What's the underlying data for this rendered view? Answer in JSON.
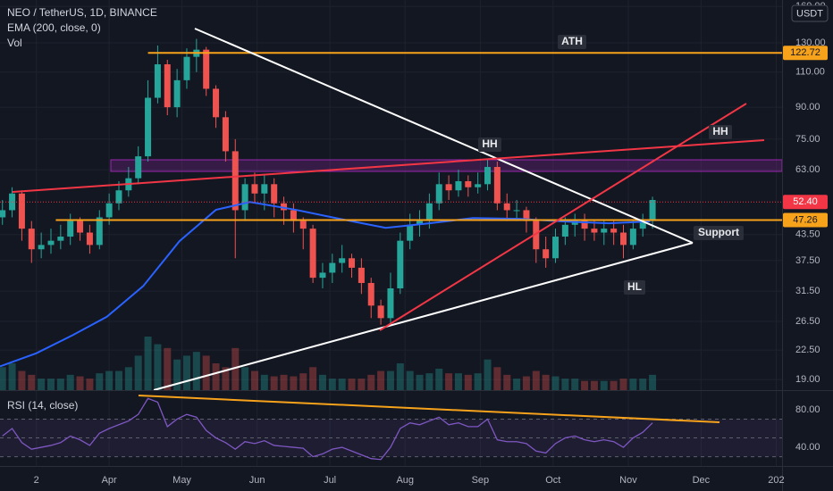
{
  "chart_data": [
    {
      "type": "candlestick",
      "title": "NEO / TetherUS, 1D, BINANCE",
      "unit": "USDT",
      "log_scale": true,
      "grid": true,
      "up_color": "#26a69a",
      "down_color": "#ef5350",
      "xlim": [
        -15,
        307.4
      ],
      "xticks": [
        {
          "value": 0,
          "label": "2"
        },
        {
          "value": 30,
          "label": "Apr"
        },
        {
          "value": 60,
          "label": "May"
        },
        {
          "value": 91,
          "label": "Jun"
        },
        {
          "value": 121,
          "label": "Jul"
        },
        {
          "value": 152,
          "label": "Aug"
        },
        {
          "value": 183,
          "label": "Sep"
        },
        {
          "value": 213,
          "label": "Oct"
        },
        {
          "value": 244,
          "label": "Nov"
        },
        {
          "value": 274,
          "label": "Dec"
        },
        {
          "value": 305,
          "label": "202"
        }
      ],
      "ylim": [
        17.9,
        166
      ],
      "yticks": [
        {
          "value": 160,
          "label": "160.00"
        },
        {
          "value": 130,
          "label": "130.00"
        },
        {
          "value": 110,
          "label": "110.00"
        },
        {
          "value": 90,
          "label": "90.00"
        },
        {
          "value": 75,
          "label": "75.00"
        },
        {
          "value": 63,
          "label": "63.00"
        },
        {
          "value": 43.5,
          "label": "43.50"
        },
        {
          "value": 37.5,
          "label": "37.50"
        },
        {
          "value": 31.5,
          "label": "31.50"
        },
        {
          "value": 26.5,
          "label": "26.50"
        },
        {
          "value": 22.5,
          "label": "22.50"
        },
        {
          "value": 19,
          "label": "19.00"
        }
      ],
      "x": [
        -14,
        -10,
        -6,
        -2,
        2,
        6,
        10,
        14,
        18,
        22,
        26,
        30,
        34,
        38,
        42,
        46,
        50,
        54,
        58,
        62,
        66,
        70,
        74,
        78,
        82,
        86,
        90,
        94,
        98,
        102,
        106,
        110,
        114,
        118,
        122,
        126,
        130,
        134,
        138,
        142,
        146,
        150,
        154,
        158,
        162,
        166,
        170,
        174,
        178,
        182,
        186,
        190,
        194,
        198,
        202,
        206,
        210,
        214,
        218,
        222,
        226,
        230,
        234,
        238,
        242,
        246,
        250,
        254
      ],
      "open": [
        48,
        50,
        55,
        45,
        40,
        41,
        42,
        43,
        47,
        44,
        41,
        48,
        52,
        56,
        60,
        68,
        95,
        115,
        90,
        105,
        120,
        125,
        100,
        85,
        70,
        50,
        58,
        55,
        58,
        52,
        50,
        47,
        45,
        34,
        35,
        37,
        38,
        36,
        33,
        29,
        27,
        32,
        42,
        46,
        47,
        52,
        58,
        56,
        59,
        57,
        58,
        64,
        52,
        50,
        50,
        47,
        40,
        38,
        43,
        46,
        47,
        45,
        44,
        45,
        44,
        41,
        45,
        47
      ],
      "high": [
        53,
        57,
        56,
        47,
        44,
        45,
        46,
        49,
        48,
        46,
        50,
        55,
        59,
        64,
        72,
        105,
        128,
        118,
        112,
        126,
        133,
        127,
        102,
        88,
        75,
        60,
        62,
        61,
        60,
        54,
        52,
        48,
        46,
        37,
        39,
        41,
        39,
        38,
        34,
        30,
        35,
        44,
        49,
        50,
        55,
        62,
        61,
        63,
        61,
        62,
        67,
        66,
        55,
        53,
        51,
        48,
        43,
        45,
        48,
        49,
        49,
        47,
        47,
        47,
        46,
        47,
        49,
        54
      ],
      "low": [
        46,
        48,
        42,
        37,
        38,
        39,
        40,
        41,
        42,
        39,
        40,
        46,
        50,
        54,
        58,
        66,
        92,
        86,
        85,
        100,
        110,
        96,
        80,
        66,
        38,
        47,
        52,
        50,
        48,
        46,
        44,
        40,
        33,
        32,
        33,
        35,
        34,
        31,
        27,
        26,
        26,
        31,
        40,
        43,
        45,
        50,
        53,
        54,
        54,
        55,
        56,
        50,
        47,
        47,
        44,
        37,
        36,
        37,
        41,
        43,
        42,
        42,
        41,
        41,
        38,
        40,
        43,
        45
      ],
      "close": [
        50,
        55,
        45,
        40,
        41,
        42,
        43,
        47,
        44,
        41,
        48,
        52,
        56,
        60,
        68,
        95,
        115,
        90,
        105,
        120,
        125,
        100,
        85,
        70,
        50,
        58,
        55,
        58,
        52,
        50,
        47,
        45,
        34,
        35,
        37,
        38,
        36,
        33,
        29,
        27,
        32,
        42,
        46,
        47,
        52,
        58,
        56,
        59,
        57,
        58,
        64,
        52,
        50,
        50,
        47,
        40,
        38,
        43,
        46,
        47,
        45,
        44,
        45,
        44,
        41,
        45,
        47,
        53
      ],
      "volume": {
        "name": "Vol",
        "values": [
          30,
          35,
          25,
          20,
          15,
          15,
          15,
          20,
          18,
          15,
          22,
          25,
          25,
          30,
          45,
          70,
          60,
          55,
          40,
          45,
          50,
          45,
          35,
          30,
          55,
          30,
          25,
          20,
          18,
          20,
          18,
          22,
          30,
          20,
          15,
          15,
          15,
          15,
          20,
          25,
          25,
          35,
          25,
          20,
          22,
          28,
          22,
          22,
          20,
          22,
          40,
          30,
          20,
          15,
          18,
          25,
          20,
          18,
          15,
          15,
          12,
          12,
          12,
          12,
          15,
          15,
          15,
          20
        ]
      },
      "series": [
        {
          "name": "EMA (200, close, 0)",
          "color": "#2962ff",
          "x": [
            -15,
            0,
            15,
            29,
            44,
            59,
            74,
            88,
            107,
            125,
            144,
            162,
            180,
            199,
            217,
            236,
            253
          ],
          "values": [
            20.5,
            22.1,
            24.5,
            27.2,
            32.4,
            41.9,
            50.1,
            52.4,
            50.1,
            47.6,
            45.2,
            46.4,
            47.8,
            47.6,
            46.9,
            46.4,
            46.9
          ]
        }
      ],
      "price_lines": [
        {
          "value": 122.72,
          "color": "#f7a21b",
          "start": 46
        },
        {
          "value": 47.26,
          "color": "#f7a21b",
          "start": 8
        },
        {
          "value": 52.4,
          "label": "52.40",
          "color": "#f23645",
          "start": -15
        }
      ],
      "annotations": [
        "ATH",
        "HH",
        "HH",
        "Support",
        "HL"
      ]
    },
    {
      "type": "line",
      "name": "RSI (14, close)",
      "color": "#7e57c2",
      "ylim": [
        22,
        98
      ],
      "yticks": [
        {
          "value": 80,
          "label": "80.00"
        },
        {
          "value": 40,
          "label": "40.00"
        }
      ],
      "levels": [
        70,
        50,
        30
      ],
      "x": [
        -14,
        -10,
        -6,
        -2,
        2,
        6,
        10,
        14,
        18,
        22,
        26,
        30,
        34,
        38,
        42,
        46,
        50,
        54,
        58,
        62,
        66,
        70,
        74,
        78,
        82,
        86,
        90,
        94,
        98,
        102,
        106,
        110,
        114,
        118,
        122,
        126,
        130,
        134,
        138,
        142,
        146,
        150,
        154,
        158,
        162,
        166,
        170,
        174,
        178,
        182,
        186,
        190,
        194,
        198,
        202,
        206,
        210,
        214,
        218,
        222,
        226,
        230,
        234,
        238,
        242,
        246,
        250,
        254
      ],
      "values": [
        52,
        60,
        45,
        38,
        40,
        42,
        45,
        52,
        48,
        42,
        55,
        60,
        64,
        68,
        75,
        92,
        88,
        62,
        70,
        75,
        72,
        58,
        50,
        45,
        38,
        46,
        44,
        47,
        42,
        41,
        40,
        39,
        30,
        33,
        38,
        40,
        36,
        32,
        28,
        27,
        40,
        60,
        66,
        64,
        68,
        72,
        64,
        66,
        62,
        62,
        70,
        48,
        46,
        46,
        44,
        36,
        34,
        44,
        50,
        52,
        48,
        46,
        48,
        46,
        40,
        50,
        56,
        66
      ]
    }
  ]
}
